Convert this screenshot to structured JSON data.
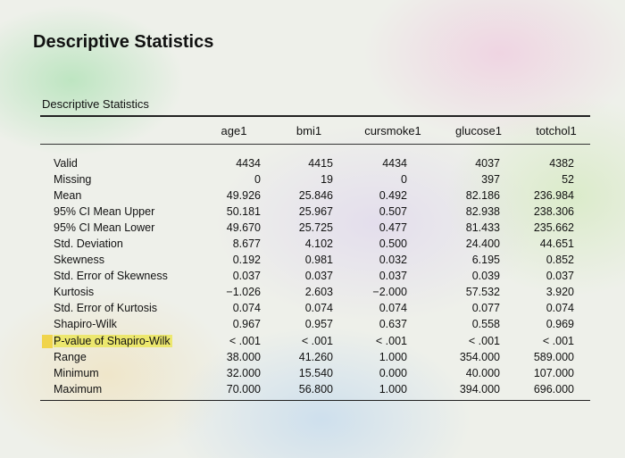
{
  "page": {
    "title": "Descriptive Statistics"
  },
  "table": {
    "caption": "Descriptive Statistics",
    "columns": [
      "age1",
      "bmi1",
      "cursmoke1",
      "glucose1",
      "totchol1"
    ],
    "rows": [
      {
        "label": "Valid",
        "values": [
          "4434",
          "4415",
          "4434",
          "4037",
          "4382"
        ]
      },
      {
        "label": "Missing",
        "values": [
          "0",
          "19",
          "0",
          "397",
          "52"
        ]
      },
      {
        "label": "Mean",
        "values": [
          "49.926",
          "25.846",
          "0.492",
          "82.186",
          "236.984"
        ]
      },
      {
        "label": "95% CI Mean Upper",
        "values": [
          "50.181",
          "25.967",
          "0.507",
          "82.938",
          "238.306"
        ]
      },
      {
        "label": "95% CI Mean Lower",
        "values": [
          "49.670",
          "25.725",
          "0.477",
          "81.433",
          "235.662"
        ]
      },
      {
        "label": "Std. Deviation",
        "values": [
          "8.677",
          "4.102",
          "0.500",
          "24.400",
          "44.651"
        ]
      },
      {
        "label": "Skewness",
        "values": [
          "0.192",
          "0.981",
          "0.032",
          "6.195",
          "0.852"
        ]
      },
      {
        "label": "Std. Error of Skewness",
        "values": [
          "0.037",
          "0.037",
          "0.037",
          "0.039",
          "0.037"
        ]
      },
      {
        "label": "Kurtosis",
        "values": [
          "−1.026",
          "2.603",
          "−2.000",
          "57.532",
          "3.920"
        ]
      },
      {
        "label": "Std. Error of Kurtosis",
        "values": [
          "0.074",
          "0.074",
          "0.074",
          "0.077",
          "0.074"
        ]
      },
      {
        "label": "Shapiro-Wilk",
        "values": [
          "0.967",
          "0.957",
          "0.637",
          "0.558",
          "0.969"
        ]
      },
      {
        "label": "P-value of Shapiro-Wilk",
        "values": [
          "< .001",
          "< .001",
          "< .001",
          "< .001",
          "< .001"
        ],
        "highlighted": true
      },
      {
        "label": "Range",
        "values": [
          "38.000",
          "41.260",
          "1.000",
          "354.000",
          "589.000"
        ]
      },
      {
        "label": "Minimum",
        "values": [
          "32.000",
          "15.540",
          "0.000",
          "40.000",
          "107.000"
        ]
      },
      {
        "label": "Maximum",
        "values": [
          "70.000",
          "56.800",
          "1.000",
          "394.000",
          "696.000"
        ]
      }
    ]
  },
  "colors": {
    "highlight": "#ebe65a"
  }
}
